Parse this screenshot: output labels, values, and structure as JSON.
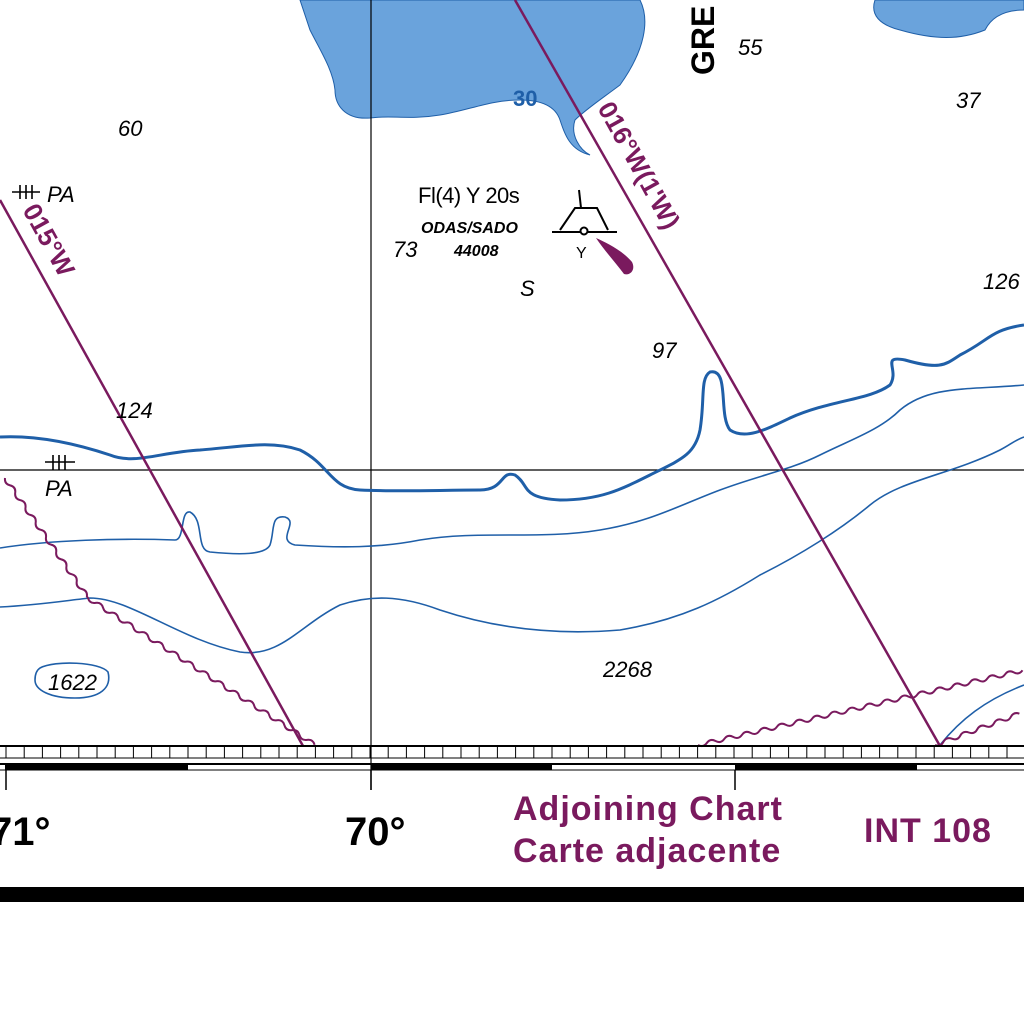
{
  "colors": {
    "water_shallow": "#6aa3dc",
    "contour": "#1f5fa8",
    "magenta": "#7a1a5e",
    "land": "#ffffff",
    "ink": "#000000"
  },
  "area_label": "GRE",
  "shallow_contour_label": "30",
  "soundings": [
    "55",
    "37",
    "60",
    "73",
    "97",
    "126",
    "124",
    "1622",
    "2268"
  ],
  "seabed_quality": "S",
  "buoy": {
    "light": "Fl(4) Y 20s",
    "type": "ODAS/SADO",
    "id": "44008",
    "color_code": "Y"
  },
  "traffic_lines": [
    {
      "label": "015°W"
    },
    {
      "label": "016°W(1'W)"
    }
  ],
  "pipeline_labels": [
    "PA",
    "PA"
  ],
  "longitudes": [
    "71°",
    "70°"
  ],
  "adjoining": {
    "line1": "Adjoining Chart",
    "line2": "Carte adjacente",
    "chart_number": "INT 108"
  },
  "icons": [
    "pipeline-cross-icon",
    "odas-buoy-icon",
    "light-flare-icon"
  ]
}
